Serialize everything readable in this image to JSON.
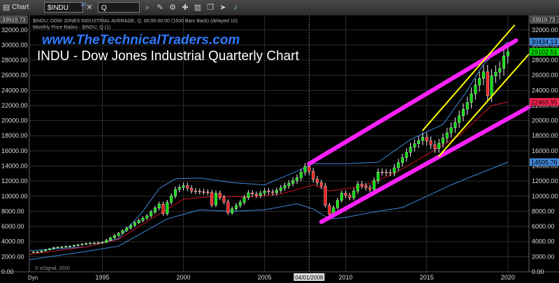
{
  "toolbar": {
    "chart_label": "Chart",
    "symbol": "$INDU",
    "interval": "Q",
    "icons": [
      "chart-icon",
      "link-icon",
      "close-icon",
      "zoom-icon",
      "pencil-icon",
      "settings-icon",
      "tool-icon",
      "bars-icon",
      "copy-icon",
      "cursor-icon",
      "twitter-icon"
    ]
  },
  "header": {
    "line1": "$INDU, DOW JONES INDUSTRIAL AVERAGE, Q, 00:00-00:00 (1500 Bars Back) (delayed 10)",
    "line2": "Monthly Price Ratios - $INDU, Q (1)",
    "website": "www.TheTechnicalTraders.com",
    "title": "INDU - Dow Jones Industrial Quarterly Chart",
    "copyright": "© eSignal, 2020",
    "dyn": "Dyn"
  },
  "colors": {
    "background": "#000000",
    "bull_candle": "#00dd00",
    "bear_candle": "#ff2020",
    "channel_magenta": "#ff22ff",
    "channel_yellow": "#ffff00",
    "band_blue": "#3d86d8",
    "mid_red": "#cc1122"
  },
  "chart_data": {
    "type": "candlestick",
    "x_range": [
      1990.5,
      2021.3
    ],
    "ylim": [
      0,
      33919.73
    ],
    "y_ticks": [
      0,
      2000,
      4000,
      6000,
      8000,
      10000,
      12000,
      14000,
      16000,
      18000,
      20000,
      22000,
      24000,
      26000,
      28000,
      30000,
      32000
    ],
    "y_tick_labels_left": [
      "0.00",
      "2000.00",
      "4000.00",
      "6000.00",
      "8000.00",
      "10000.00",
      "12000.00",
      "14000.00",
      "16000.00",
      "18000.00",
      "20000.00",
      "22000.00",
      "24000.00",
      "26000.00",
      "28000.00",
      "30000.00",
      "32000.00"
    ],
    "y_tick_labels_right": [
      "0.00",
      "2000.00",
      "4000.00",
      "6000.00",
      "8000.00",
      "10000.00",
      "12000.00",
      "14000.00",
      "16000.00",
      "18000.00",
      "20000.00",
      "22000.00",
      "24000.00",
      "26000.00",
      "28000.00",
      "30000.00",
      "32000.00"
    ],
    "top_value_label": "33919.73",
    "x_ticks": [
      1995,
      2000,
      2005,
      2010,
      2015,
      2020
    ],
    "x_tick_labels": [
      "1995",
      "2000",
      "2005",
      "2010",
      "2015",
      "2020"
    ],
    "x_marker": {
      "x": 2007.75,
      "label": "04/01/2008"
    },
    "grid": true,
    "price_labels": [
      {
        "value": 30434.13,
        "label": "30434.13",
        "color": "#3d86d8"
      },
      {
        "value": 29102.51,
        "label": "29102.51",
        "color": "#00dd00"
      },
      {
        "value": 22469.95,
        "label": "22469.95",
        "color": "#ff2255"
      },
      {
        "value": 14505.76,
        "label": "14505.76",
        "color": "#3d86d8"
      }
    ],
    "quarterly_close_anchors": [
      [
        1990.5,
        2600
      ],
      [
        1991.0,
        2630
      ],
      [
        1992.0,
        3200
      ],
      [
        1993.0,
        3400
      ],
      [
        1994.0,
        3750
      ],
      [
        1995.0,
        3900
      ],
      [
        1996.0,
        5100
      ],
      [
        1997.0,
        6500
      ],
      [
        1997.75,
        7400
      ],
      [
        1998.5,
        8950
      ],
      [
        1998.75,
        7700
      ],
      [
        1999.0,
        9200
      ],
      [
        1999.5,
        10900
      ],
      [
        2000.0,
        11400
      ],
      [
        2000.5,
        10700
      ],
      [
        2001.0,
        10600
      ],
      [
        2001.5,
        10500
      ],
      [
        2001.75,
        8850
      ],
      [
        2002.0,
        10400
      ],
      [
        2002.5,
        9250
      ],
      [
        2002.75,
        7800
      ],
      [
        2003.0,
        8350
      ],
      [
        2003.5,
        9200
      ],
      [
        2004.0,
        10450
      ],
      [
        2004.5,
        10100
      ],
      [
        2005.0,
        10700
      ],
      [
        2005.5,
        10450
      ],
      [
        2006.0,
        11100
      ],
      [
        2006.5,
        11700
      ],
      [
        2007.0,
        12450
      ],
      [
        2007.5,
        13900
      ],
      [
        2007.75,
        13300
      ],
      [
        2008.0,
        12250
      ],
      [
        2008.5,
        11350
      ],
      [
        2008.75,
        8800
      ],
      [
        2009.0,
        7600
      ],
      [
        2009.25,
        8500
      ],
      [
        2009.75,
        10400
      ],
      [
        2010.25,
        9800
      ],
      [
        2010.75,
        11600
      ],
      [
        2011.5,
        10900
      ],
      [
        2012.0,
        13200
      ],
      [
        2012.75,
        13100
      ],
      [
        2013.5,
        15100
      ],
      [
        2014.0,
        16500
      ],
      [
        2014.75,
        17800
      ],
      [
        2015.5,
        16300
      ],
      [
        2016.0,
        17700
      ],
      [
        2016.75,
        19750
      ],
      [
        2017.5,
        22400
      ],
      [
        2018.0,
        24700
      ],
      [
        2018.5,
        26450
      ],
      [
        2018.75,
        23300
      ],
      [
        2019.0,
        25900
      ],
      [
        2019.5,
        26900
      ],
      [
        2019.75,
        28550
      ],
      [
        2020.0,
        29102.51
      ]
    ],
    "series": [
      {
        "kind": "upper_band",
        "color": "#3d86d8",
        "points": [
          [
            1990.5,
            2800
          ],
          [
            1994.0,
            3300
          ],
          [
            1996.0,
            4400
          ],
          [
            1997.5,
            8000
          ],
          [
            1998.5,
            11000
          ],
          [
            1999.5,
            12300
          ],
          [
            2001.0,
            12400
          ],
          [
            2003.0,
            11800
          ],
          [
            2005.0,
            11500
          ],
          [
            2007.0,
            13300
          ],
          [
            2008.0,
            14300
          ],
          [
            2010.0,
            14300
          ],
          [
            2012.0,
            14500
          ],
          [
            2014.0,
            17500
          ],
          [
            2016.0,
            19500
          ],
          [
            2017.5,
            24000
          ],
          [
            2018.5,
            27500
          ],
          [
            2020.0,
            30434.13
          ]
        ]
      },
      {
        "kind": "moving_average",
        "color": "#cc1122",
        "points": [
          [
            1990.5,
            2300
          ],
          [
            1994.0,
            3300
          ],
          [
            1996.0,
            4300
          ],
          [
            1998.0,
            7000
          ],
          [
            2000.0,
            9600
          ],
          [
            2002.0,
            10000
          ],
          [
            2004.0,
            9900
          ],
          [
            2006.0,
            10300
          ],
          [
            2008.0,
            11500
          ],
          [
            2009.0,
            10700
          ],
          [
            2011.0,
            11300
          ],
          [
            2013.0,
            13000
          ],
          [
            2015.0,
            15500
          ],
          [
            2017.0,
            18000
          ],
          [
            2019.0,
            22000
          ],
          [
            2020.0,
            22469.95
          ]
        ]
      },
      {
        "kind": "lower_band",
        "color": "#3d86d8",
        "points": [
          [
            1990.5,
            1600
          ],
          [
            1994.0,
            2700
          ],
          [
            1996.0,
            3400
          ],
          [
            1997.5,
            5200
          ],
          [
            1999.0,
            7000
          ],
          [
            2001.0,
            8200
          ],
          [
            2003.0,
            8000
          ],
          [
            2005.0,
            8200
          ],
          [
            2007.0,
            9000
          ],
          [
            2008.0,
            8300
          ],
          [
            2009.0,
            7000
          ],
          [
            2010.0,
            7200
          ],
          [
            2012.0,
            8000
          ],
          [
            2013.5,
            8500
          ],
          [
            2015.0,
            10000
          ],
          [
            2016.5,
            11500
          ],
          [
            2018.0,
            12800
          ],
          [
            2020.0,
            14505.76
          ]
        ]
      }
    ],
    "channel_lines": [
      {
        "color": "#ff22ff",
        "from": [
          2007.75,
          14300
        ],
        "to": [
          2020.5,
          30600
        ]
      },
      {
        "color": "#ff22ff",
        "from": [
          2008.5,
          6600
        ],
        "to": [
          2021.3,
          21800
        ]
      },
      {
        "color": "#ffff00",
        "from": [
          2014.75,
          18700
        ],
        "to": [
          2020.4,
          32600
        ]
      },
      {
        "color": "#ffff00",
        "from": [
          2015.75,
          15300
        ],
        "to": [
          2021.3,
          28800
        ]
      }
    ]
  }
}
